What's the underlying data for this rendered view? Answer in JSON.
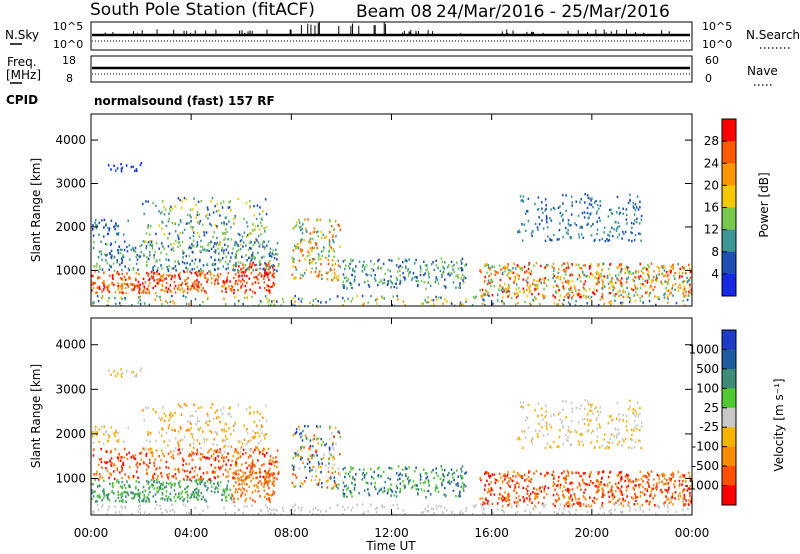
{
  "header": {
    "station": "South Pole Station (fitACF)",
    "beam": "Beam 08",
    "dates": "24/Mar/2016 - 25/Mar/2016"
  },
  "panels": {
    "nsky_label": "N.Sky",
    "nsky_ticks": [
      "10^5",
      "10^0"
    ],
    "nsearch_label": "N.Search",
    "nsearch_ticks": [
      "10^5",
      "10^0"
    ],
    "freq_label_1": "Freq.",
    "freq_label_2": "[MHz]",
    "freq_ticks": [
      "18",
      "8"
    ],
    "nave_label": "Nave",
    "nave_ticks": [
      "60",
      "0"
    ],
    "cpid_label": "CPID",
    "cpid_text": "normalsound (fast) 157 RF"
  },
  "chart_data": [
    {
      "type": "heatmap",
      "name": "power",
      "ylabel": "Slant Range [km]",
      "xlabel": "Time UT",
      "xlim": [
        "00:00",
        "00:00"
      ],
      "ylim": [
        180,
        4600
      ],
      "yticks": [
        "4000",
        "3000",
        "2000",
        "1000"
      ],
      "colorbar": {
        "label": "Power [dB]",
        "ticks": [
          "28",
          "24",
          "20",
          "16",
          "12",
          "8",
          "4"
        ],
        "colors": [
          "#ff0000",
          "#ff5a00",
          "#ff9600",
          "#f5c800",
          "#78c850",
          "#3c9696",
          "#1e50b4",
          "#1428e6"
        ]
      }
    },
    {
      "type": "heatmap",
      "name": "velocity",
      "ylabel": "Slant Range [km]",
      "xlabel": "Time UT",
      "xlim": [
        "00:00",
        "00:00"
      ],
      "ylim": [
        180,
        4600
      ],
      "yticks": [
        "4000",
        "3000",
        "2000",
        "1000"
      ],
      "colorbar": {
        "label": "Velocity [m s⁻¹]",
        "ticks": [
          "1000",
          "500",
          "100",
          "25",
          "-25",
          "-100",
          "-500",
          "-1000"
        ],
        "colors": [
          "#1e3cc8",
          "#1e5aa0",
          "#3c8c78",
          "#50c832",
          "#c8c8c8",
          "#f5b400",
          "#ff8c00",
          "#ff5000",
          "#ff0000"
        ]
      }
    }
  ],
  "time_axis": {
    "label": "Time UT",
    "ticks": [
      "00:00",
      "04:00",
      "08:00",
      "12:00",
      "16:00",
      "20:00",
      "00:00"
    ]
  }
}
